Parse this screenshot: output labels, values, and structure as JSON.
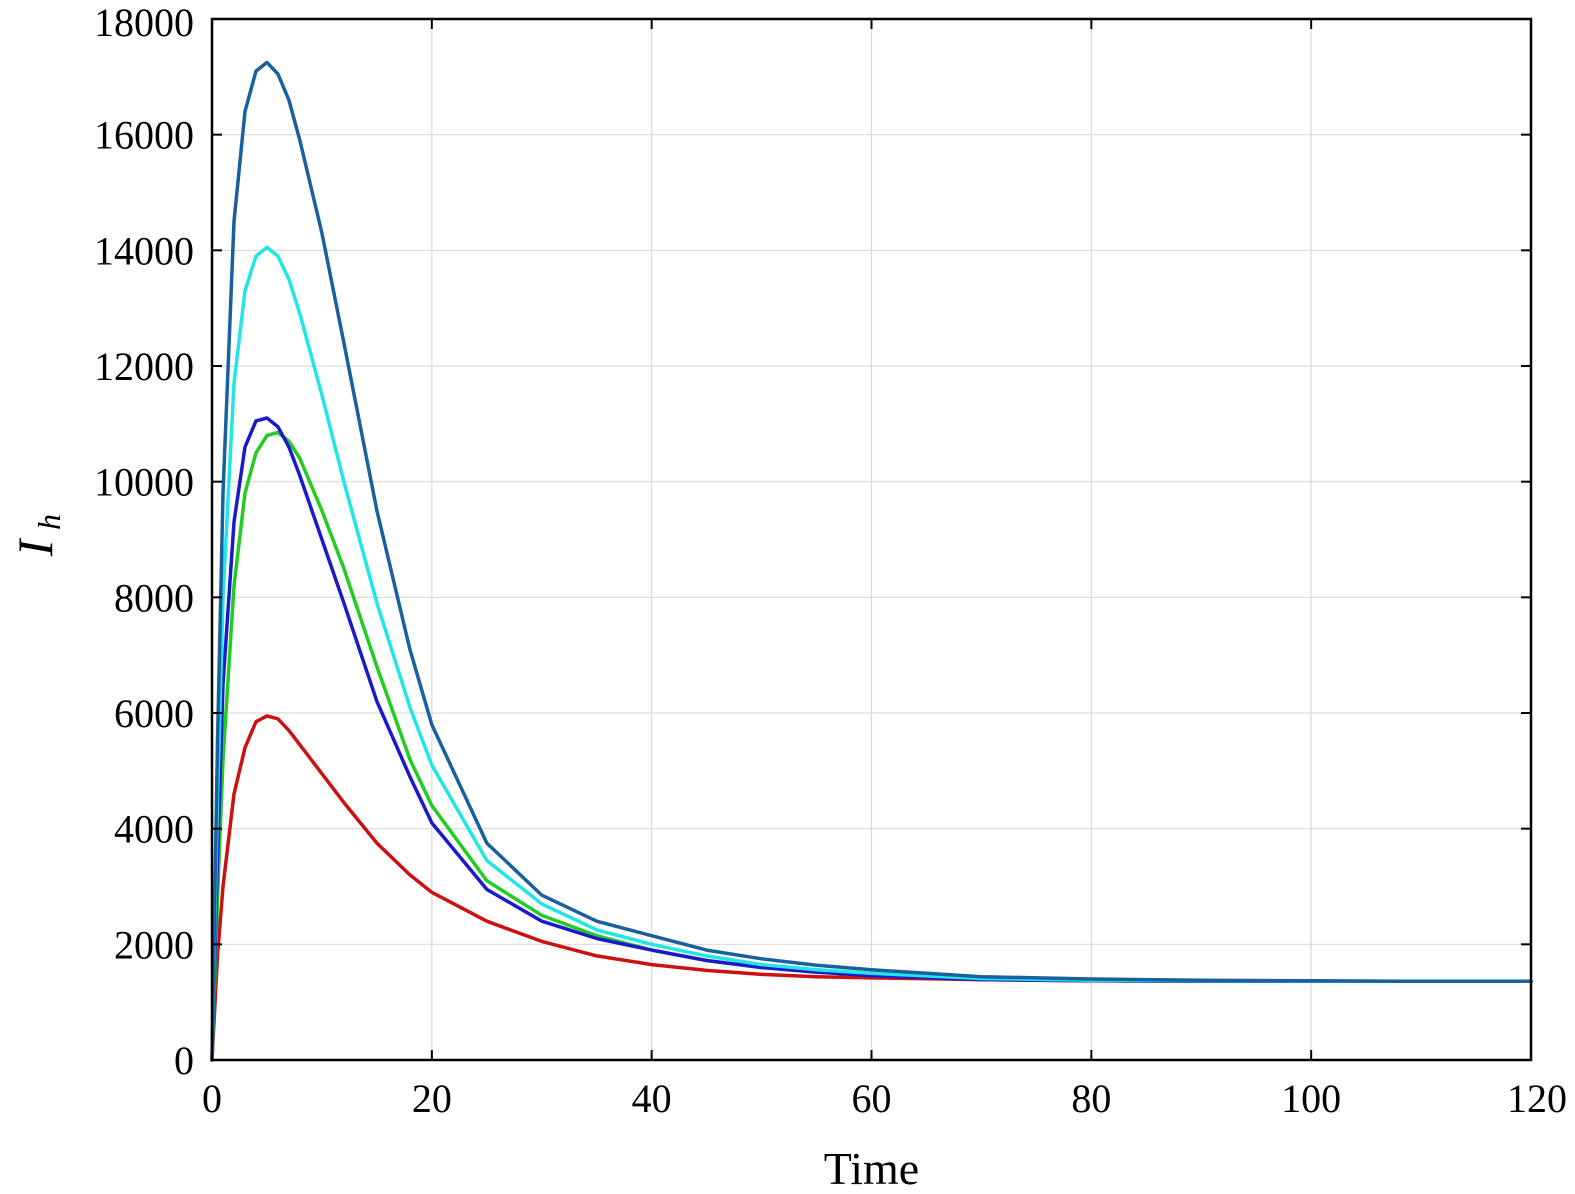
{
  "chart_data": {
    "type": "line",
    "title": "",
    "xlabel": "Time",
    "ylabel": "I",
    "ylabel_subscript": "h",
    "xlim": [
      0,
      120
    ],
    "ylim": [
      0,
      18000
    ],
    "x_ticks": [
      0,
      20,
      40,
      60,
      80,
      100,
      120
    ],
    "y_ticks": [
      0,
      2000,
      4000,
      6000,
      8000,
      10000,
      12000,
      14000,
      16000,
      18000
    ],
    "grid": true,
    "legend": "none",
    "series": [
      {
        "color": "#cc1111",
        "x": [
          0,
          0.5,
          1,
          2,
          3,
          4,
          5,
          6,
          7,
          8,
          10,
          12,
          15,
          18,
          20,
          25,
          30,
          35,
          40,
          45,
          50,
          55,
          60,
          70,
          80,
          90,
          100,
          110,
          120
        ],
        "y": [
          0,
          1800,
          3000,
          4600,
          5400,
          5850,
          5950,
          5900,
          5700,
          5450,
          4950,
          4450,
          3750,
          3200,
          2900,
          2400,
          2050,
          1800,
          1650,
          1550,
          1480,
          1440,
          1420,
          1390,
          1370,
          1360,
          1360,
          1360,
          1360
        ]
      },
      {
        "color": "#22cc22",
        "x": [
          0,
          0.5,
          1,
          2,
          3,
          4,
          5,
          6,
          7,
          8,
          10,
          12,
          15,
          18,
          20,
          25,
          30,
          35,
          40,
          45,
          50,
          55,
          60,
          70,
          80,
          90,
          100,
          110,
          120
        ],
        "y": [
          0,
          2800,
          5200,
          8200,
          9800,
          10500,
          10800,
          10850,
          10700,
          10400,
          9500,
          8500,
          6800,
          5200,
          4400,
          3100,
          2500,
          2150,
          1900,
          1720,
          1600,
          1520,
          1470,
          1400,
          1380,
          1370,
          1365,
          1360,
          1360
        ]
      },
      {
        "color": "#1a1acc",
        "x": [
          0,
          0.5,
          1,
          2,
          3,
          4,
          5,
          6,
          7,
          8,
          10,
          12,
          15,
          18,
          20,
          25,
          30,
          35,
          40,
          45,
          50,
          55,
          60,
          70,
          80,
          90,
          100,
          110,
          120
        ],
        "y": [
          0,
          3500,
          6500,
          9300,
          10600,
          11050,
          11100,
          10950,
          10600,
          10100,
          9000,
          7900,
          6200,
          4900,
          4100,
          2950,
          2400,
          2100,
          1900,
          1720,
          1600,
          1520,
          1460,
          1390,
          1370,
          1360,
          1360,
          1360,
          1360
        ]
      },
      {
        "color": "#22e5e5",
        "x": [
          0,
          0.5,
          1,
          2,
          3,
          4,
          5,
          6,
          7,
          8,
          10,
          12,
          15,
          18,
          20,
          25,
          30,
          35,
          40,
          45,
          50,
          55,
          60,
          70,
          80,
          90,
          100,
          110,
          120
        ],
        "y": [
          0,
          4500,
          8000,
          11700,
          13300,
          13900,
          14050,
          13900,
          13500,
          12900,
          11500,
          10000,
          7900,
          6100,
          5100,
          3450,
          2700,
          2250,
          2000,
          1800,
          1650,
          1560,
          1500,
          1410,
          1380,
          1370,
          1365,
          1360,
          1360
        ]
      },
      {
        "color": "#1a5f9e",
        "x": [
          0,
          0.5,
          1,
          2,
          3,
          4,
          5,
          6,
          7,
          8,
          10,
          12,
          15,
          18,
          20,
          25,
          30,
          35,
          40,
          45,
          50,
          55,
          60,
          70,
          80,
          90,
          100,
          110,
          120
        ],
        "y": [
          0,
          5500,
          9800,
          14500,
          16400,
          17100,
          17250,
          17050,
          16600,
          15900,
          14300,
          12400,
          9500,
          7100,
          5800,
          3750,
          2850,
          2400,
          2150,
          1900,
          1750,
          1640,
          1560,
          1440,
          1400,
          1380,
          1370,
          1360,
          1360
        ]
      }
    ]
  }
}
